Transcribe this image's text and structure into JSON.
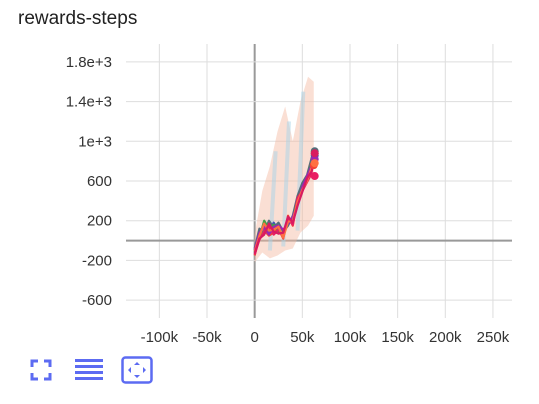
{
  "card": {
    "title": "rewards-steps"
  },
  "colors": {
    "grid": "#dddddd",
    "zero_axis": "#999999",
    "toolbar_icon": "#5c6bf2",
    "series_palette": [
      "#ff7043",
      "#f44336",
      "#e91e63",
      "#9c27b0",
      "#3f51b5",
      "#546e7a",
      "#43a047",
      "#ffb300"
    ]
  },
  "toolbar": {
    "buttons": [
      {
        "name": "fullscreen-icon",
        "tooltip": ""
      },
      {
        "name": "toggle-log-scale-icon",
        "tooltip": ""
      },
      {
        "name": "fit-domain-icon",
        "tooltip": ""
      }
    ]
  },
  "chart_data": {
    "type": "line",
    "title": "rewards-steps",
    "xlabel": "",
    "ylabel": "",
    "xlim": [
      -135000,
      270000
    ],
    "ylim": [
      -780,
      1980
    ],
    "x_ticks": [
      -100000,
      -50000,
      0,
      50000,
      100000,
      150000,
      200000,
      250000
    ],
    "x_tick_labels": [
      "-100k",
      "-50k",
      "0",
      "50k",
      "100k",
      "150k",
      "200k",
      "250k"
    ],
    "y_ticks": [
      -600,
      -200,
      200,
      600,
      1000,
      1400,
      1800
    ],
    "y_tick_labels": [
      "-600",
      "-200",
      "200",
      "600",
      "1e+3",
      "1.4e+3",
      "1.8e+3"
    ],
    "grid": true,
    "legend": "none",
    "band": {
      "x": [
        0,
        8000,
        16000,
        24000,
        32000,
        40000,
        48000,
        56000,
        62000
      ],
      "lower": [
        -220,
        -120,
        -180,
        -150,
        -100,
        -80,
        80,
        150,
        250
      ],
      "upper": [
        60,
        500,
        750,
        1100,
        1350,
        1000,
        1400,
        1650,
        1600
      ]
    },
    "series": [
      {
        "color": "#f44336",
        "x": [
          0,
          5000,
          10000,
          15000,
          20000,
          25000,
          30000,
          35000,
          40000,
          45000,
          50000,
          55000,
          60000,
          62000
        ],
        "y": [
          -150,
          40,
          100,
          50,
          80,
          120,
          20,
          250,
          150,
          420,
          520,
          640,
          720,
          760
        ]
      },
      {
        "color": "#3f51b5",
        "x": [
          0,
          5000,
          10000,
          15000,
          20000,
          25000,
          30000,
          35000,
          40000,
          45000,
          50000,
          55000,
          60000,
          63000
        ],
        "y": [
          -100,
          60,
          150,
          90,
          180,
          100,
          50,
          200,
          220,
          380,
          560,
          610,
          800,
          860
        ]
      },
      {
        "color": "#546e7a",
        "x": [
          0,
          5000,
          10000,
          15000,
          20000,
          25000,
          30000,
          35000,
          40000,
          45000,
          50000,
          55000,
          60000,
          63000
        ],
        "y": [
          -80,
          120,
          80,
          200,
          130,
          180,
          90,
          150,
          250,
          450,
          580,
          660,
          840,
          900
        ]
      },
      {
        "color": "#43a047",
        "x": [
          0,
          5000,
          10000,
          15000,
          20000,
          25000,
          30000,
          35000,
          40000,
          45000,
          50000,
          55000,
          60000,
          63000
        ],
        "y": [
          -120,
          30,
          200,
          120,
          160,
          90,
          60,
          180,
          210,
          400,
          530,
          620,
          780,
          880
        ]
      },
      {
        "color": "#e91e63",
        "x": [
          0,
          5000,
          10000,
          15000,
          20000,
          25000,
          30000,
          35000,
          40000,
          45000,
          50000,
          55000,
          60000,
          63000
        ],
        "y": [
          -140,
          10,
          90,
          140,
          60,
          110,
          40,
          220,
          160,
          430,
          500,
          590,
          680,
          650
        ]
      },
      {
        "color": "#9c27b0",
        "x": [
          0,
          5000,
          10000,
          15000,
          20000,
          25000,
          30000,
          35000,
          40000,
          45000,
          50000,
          55000,
          60000,
          63000
        ],
        "y": [
          -90,
          80,
          130,
          60,
          140,
          150,
          110,
          170,
          240,
          360,
          540,
          650,
          760,
          820
        ]
      },
      {
        "color": "#ff7043",
        "x": [
          0,
          5000,
          10000,
          15000,
          20000,
          25000,
          30000,
          35000,
          40000,
          45000,
          50000,
          55000,
          60000,
          63000
        ],
        "y": [
          -110,
          50,
          170,
          100,
          110,
          140,
          30,
          190,
          200,
          390,
          510,
          600,
          740,
          780
        ]
      },
      {
        "color": "#d81b60",
        "x": [
          0,
          5000,
          10000,
          15000,
          20000,
          25000,
          30000,
          35000,
          40000,
          45000,
          50000,
          55000,
          60000,
          63000
        ],
        "y": [
          -130,
          20,
          60,
          170,
          90,
          70,
          80,
          240,
          180,
          350,
          490,
          630,
          700,
          880
        ]
      }
    ]
  }
}
